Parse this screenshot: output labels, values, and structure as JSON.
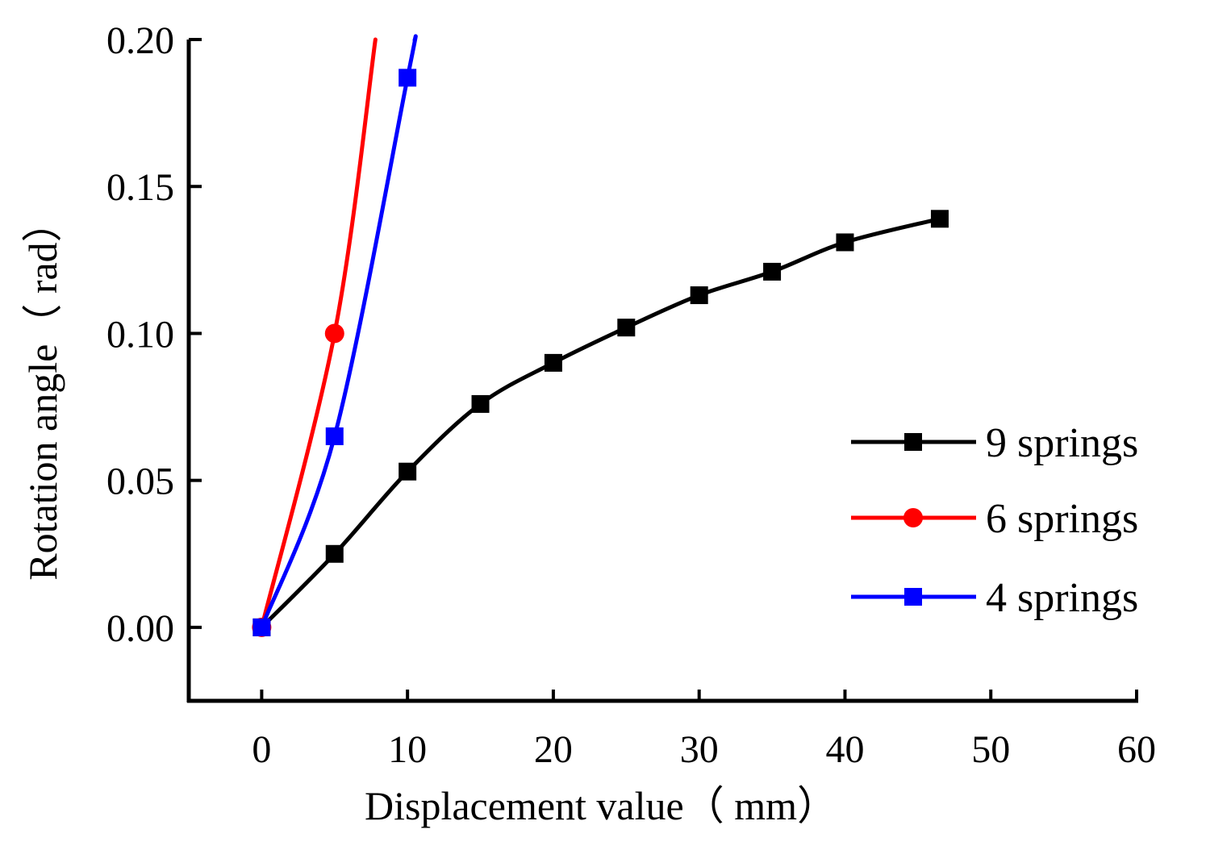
{
  "chart_data": {
    "type": "line",
    "title": "",
    "xlabel": "Displacement value（ mm）",
    "ylabel": "Rotation angle（ rad）",
    "xlim": [
      -5,
      60
    ],
    "ylim": [
      -0.025,
      0.2
    ],
    "xticks": [
      0,
      10,
      20,
      30,
      40,
      50,
      60
    ],
    "xtick_labels": [
      "0",
      "10",
      "20",
      "30",
      "40",
      "50",
      "60"
    ],
    "yticks": [
      0,
      0.05,
      0.1,
      0.15,
      0.2
    ],
    "ytick_labels": [
      "0.00",
      "0.05",
      "0.10",
      "0.15",
      "0.20"
    ],
    "grid": false,
    "legend_position": "right",
    "series": [
      {
        "name": "9 springs",
        "color": "#000000",
        "marker": "square",
        "x": [
          0,
          5,
          10,
          15,
          20,
          25,
          30,
          35,
          40,
          46.5
        ],
        "y": [
          0,
          0.025,
          0.053,
          0.076,
          0.09,
          0.102,
          0.113,
          0.121,
          0.131,
          0.139
        ]
      },
      {
        "name": "6 springs",
        "color": "#ff0000",
        "marker": "circle",
        "x": [
          0,
          5
        ],
        "y": [
          0,
          0.1
        ],
        "curve_extends_to": [
          7.8,
          0.2
        ]
      },
      {
        "name": "4 springs",
        "color": "#0000ff",
        "marker": "square",
        "x": [
          0,
          5,
          10
        ],
        "y": [
          0,
          0.065,
          0.187
        ],
        "curve_extends_to": [
          10.5,
          0.2
        ]
      }
    ]
  }
}
